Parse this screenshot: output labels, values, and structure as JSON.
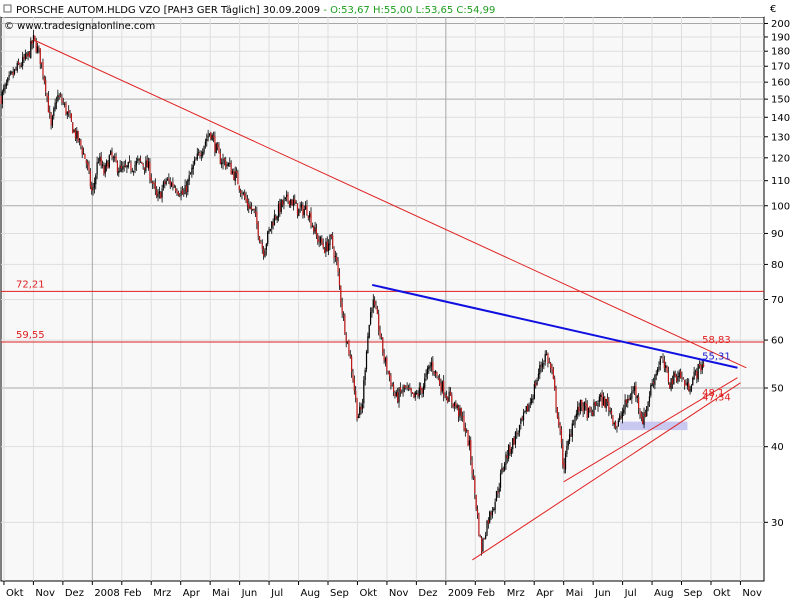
{
  "header": {
    "instrument": "PORSCHE AUTOM.HLDG VZO [PAH3 GER  Täglich] 30.09.2009",
    "quote": " - O:53,67  H:55,00  L:53,65  C:54,99",
    "source": "© www.tradesignalonline.com",
    "currency": "€"
  },
  "chart_data": {
    "type": "candlestick",
    "yscale": "log",
    "ylim": [
      24,
      205
    ],
    "y_ticks": [
      30,
      40,
      50,
      60,
      70,
      80,
      90,
      100,
      110,
      120,
      130,
      140,
      150,
      160,
      170,
      180,
      190,
      200
    ],
    "x_ticks": [
      "Okt",
      "Nov",
      "Dez",
      "2008",
      "Feb",
      "Mrz",
      "Apr",
      "Mai",
      "Jun",
      "Jul",
      "Aug",
      "Sep",
      "Okt",
      "Nov",
      "Dez",
      "2009",
      "Feb",
      "Mrz",
      "Apr",
      "Mai",
      "Jun",
      "Jul",
      "Aug",
      "Sep",
      "Okt",
      "Nov"
    ],
    "x_tick_months": [
      0,
      1,
      2,
      3,
      4,
      5,
      6,
      7,
      8,
      9,
      10,
      11,
      12,
      13,
      14,
      15,
      16,
      17,
      18,
      19,
      20,
      21,
      22,
      23,
      24,
      25
    ],
    "x_range_months": [
      -0.1,
      25.8
    ],
    "grid": true,
    "horizontal_lines": [
      {
        "value": 72.21,
        "label": "72,21",
        "color": "#e02020"
      },
      {
        "value": 59.55,
        "label": "59,55",
        "color": "#e02020"
      }
    ],
    "trendlines": [
      {
        "from": [
          1.0,
          188
        ],
        "to": [
          25.2,
          54
        ],
        "color": "#e02020",
        "width": 1
      },
      {
        "from": [
          12.5,
          74
        ],
        "to": [
          24.9,
          54
        ],
        "color": "#1010e0",
        "width": 2
      },
      {
        "from": [
          15.9,
          26
        ],
        "to": [
          25.0,
          51
        ],
        "color": "#e02020",
        "width": 1
      },
      {
        "from": [
          19.0,
          35
        ],
        "to": [
          24.9,
          52
        ],
        "color": "#e02020",
        "width": 1
      }
    ],
    "annotations": [
      {
        "text": "58,83",
        "x": 23.7,
        "y": 58.83,
        "color": "#e02020"
      },
      {
        "text": "55,31",
        "x": 23.7,
        "y": 55.31,
        "color": "#2020d0"
      },
      {
        "text": "48,1",
        "x": 23.7,
        "y": 48.1,
        "color": "#e02020"
      },
      {
        "text": "47,34",
        "x": 23.7,
        "y": 47.34,
        "color": "#e02020"
      }
    ],
    "shaded_zone": {
      "x_from": 20.9,
      "x_to": 23.2,
      "y_low": 42.6,
      "y_high": 44.0,
      "color": "#c8c8f0"
    },
    "price_path": [
      [
        -0.1,
        151
      ],
      [
        0.2,
        162
      ],
      [
        0.5,
        170
      ],
      [
        0.8,
        176
      ],
      [
        1.0,
        188
      ],
      [
        1.2,
        178
      ],
      [
        1.4,
        160
      ],
      [
        1.6,
        134
      ],
      [
        1.8,
        152
      ],
      [
        2.0,
        148
      ],
      [
        2.2,
        140
      ],
      [
        2.4,
        132
      ],
      [
        2.6,
        126
      ],
      [
        2.8,
        118
      ],
      [
        3.0,
        104
      ],
      [
        3.2,
        120
      ],
      [
        3.4,
        113
      ],
      [
        3.6,
        121
      ],
      [
        3.8,
        117
      ],
      [
        4.0,
        114
      ],
      [
        4.3,
        116
      ],
      [
        4.6,
        118
      ],
      [
        4.9,
        116
      ],
      [
        5.2,
        102
      ],
      [
        5.5,
        110
      ],
      [
        5.8,
        108
      ],
      [
        6.1,
        104
      ],
      [
        6.4,
        115
      ],
      [
        6.7,
        124
      ],
      [
        7.0,
        133
      ],
      [
        7.3,
        120
      ],
      [
        7.6,
        117
      ],
      [
        7.9,
        111
      ],
      [
        8.2,
        102
      ],
      [
        8.5,
        97
      ],
      [
        8.8,
        84
      ],
      [
        9.1,
        94
      ],
      [
        9.4,
        100
      ],
      [
        9.7,
        103
      ],
      [
        10.0,
        98
      ],
      [
        10.3,
        99
      ],
      [
        10.6,
        89
      ],
      [
        10.9,
        85
      ],
      [
        11.1,
        88
      ],
      [
        11.3,
        80
      ],
      [
        11.5,
        66
      ],
      [
        11.7,
        58
      ],
      [
        11.85,
        52
      ],
      [
        12.0,
        45
      ],
      [
        12.15,
        46
      ],
      [
        12.3,
        58
      ],
      [
        12.5,
        70
      ],
      [
        12.7,
        64
      ],
      [
        12.9,
        56
      ],
      [
        13.1,
        52
      ],
      [
        13.3,
        48
      ],
      [
        13.6,
        50
      ],
      [
        13.9,
        48
      ],
      [
        14.2,
        50
      ],
      [
        14.5,
        55
      ],
      [
        14.8,
        51
      ],
      [
        15.0,
        49
      ],
      [
        15.3,
        47
      ],
      [
        15.6,
        44
      ],
      [
        15.8,
        40
      ],
      [
        16.0,
        33
      ],
      [
        16.2,
        27
      ],
      [
        16.4,
        30
      ],
      [
        16.7,
        33
      ],
      [
        17.0,
        38
      ],
      [
        17.3,
        41
      ],
      [
        17.6,
        44
      ],
      [
        17.9,
        48
      ],
      [
        18.2,
        54
      ],
      [
        18.4,
        57
      ],
      [
        18.6,
        53
      ],
      [
        18.8,
        45
      ],
      [
        19.0,
        37
      ],
      [
        19.3,
        44
      ],
      [
        19.6,
        47
      ],
      [
        19.9,
        45
      ],
      [
        20.2,
        48
      ],
      [
        20.5,
        47
      ],
      [
        20.8,
        43
      ],
      [
        21.1,
        47
      ],
      [
        21.4,
        50
      ],
      [
        21.7,
        44
      ],
      [
        22.0,
        51
      ],
      [
        22.3,
        56
      ],
      [
        22.6,
        51
      ],
      [
        22.9,
        53
      ],
      [
        23.2,
        50
      ],
      [
        23.5,
        53
      ],
      [
        23.75,
        55
      ]
    ]
  }
}
